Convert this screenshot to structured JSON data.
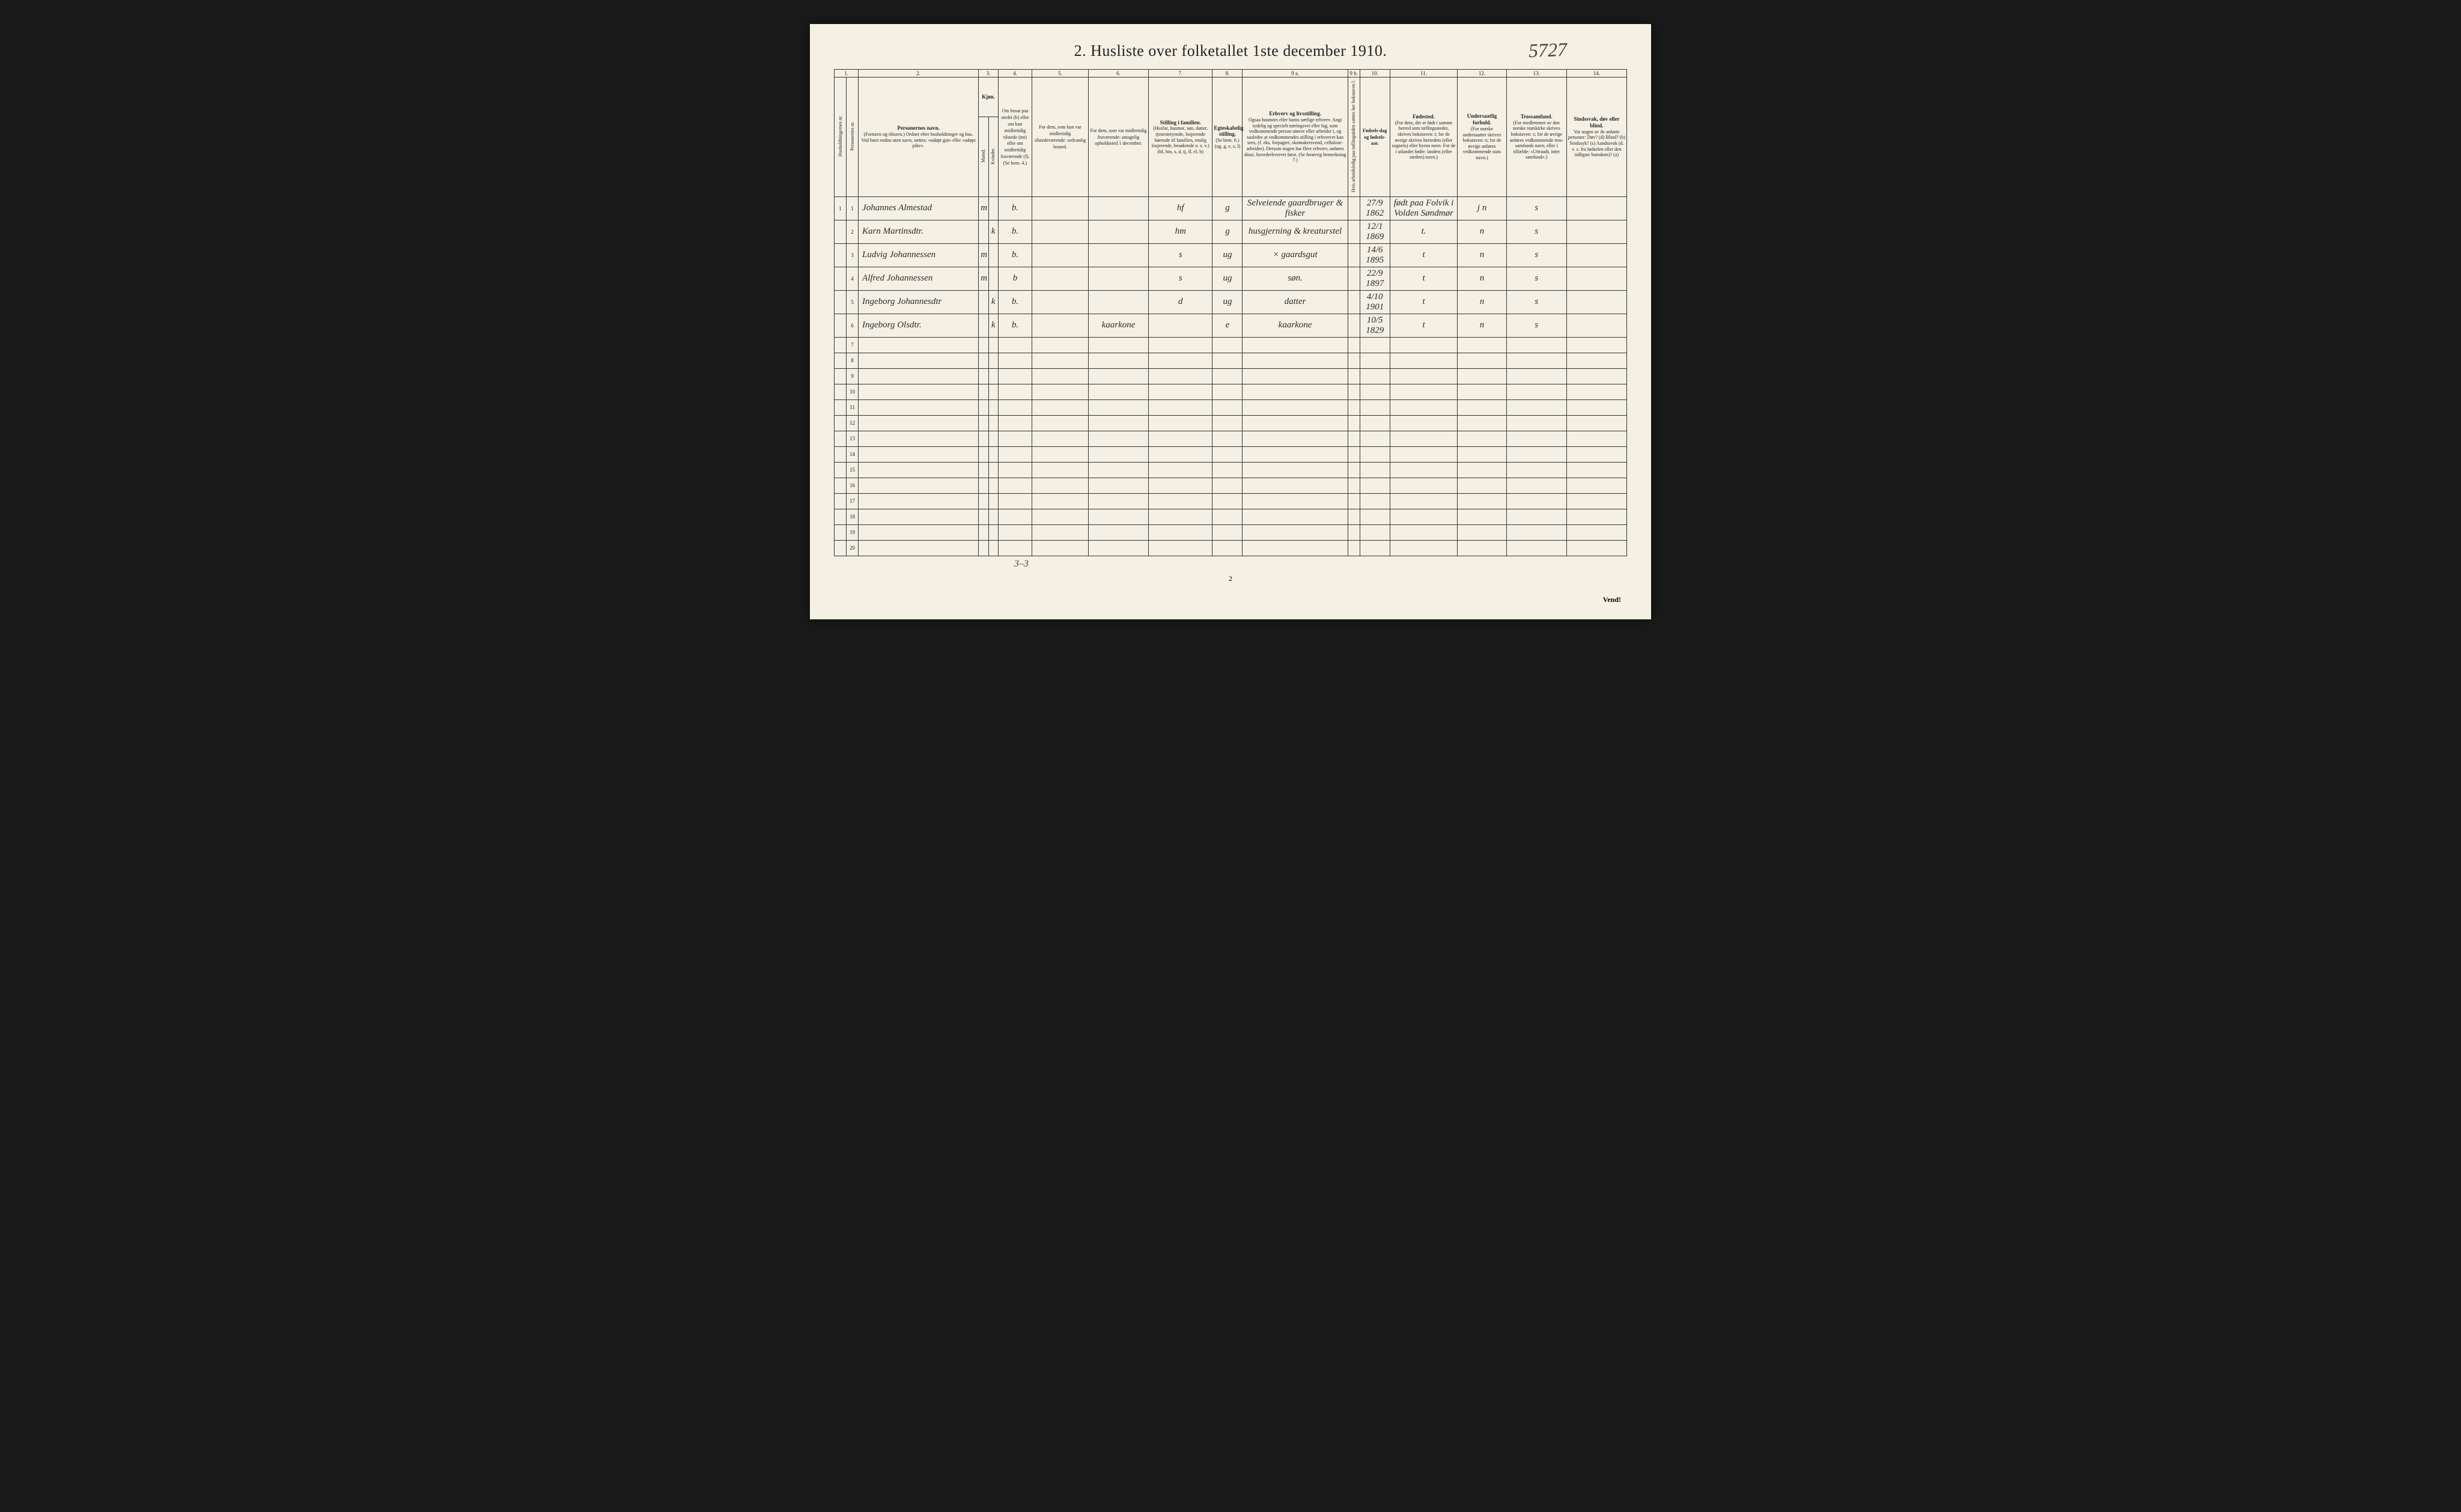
{
  "title": "2.  Husliste over folketallet 1ste december 1910.",
  "corner_number": "5727",
  "page_number_bottom": "2",
  "vend_text": "Vend!",
  "below_table_note": "3–3",
  "column_numbers": [
    "1.",
    "2.",
    "3.",
    "4.",
    "5.",
    "6.",
    "7.",
    "8.",
    "9 a.",
    "9 b.",
    "10.",
    "11.",
    "12.",
    "13.",
    "14."
  ],
  "headers": {
    "c1a": "Husholdningernes nr.",
    "c1b": "Personernes nr.",
    "c2_title": "Personernes navn.",
    "c2_sub": "(Fornavn og tilnavn.)\nOrdnet efter husholdninger og hus.\nVed barn endnu uten navn, sættes: «udøpt gut» eller «udøpt pike».",
    "c3_title": "Kjøn.",
    "c3a": "Mænd.",
    "c3b": "Kvinder.",
    "c3_sub": "m.  k.",
    "c4": "Om bosat paa stedet (b) eller om kun midlertidig tilstede (mt) eller om midlertidig fraværende (f). (Se bem. 4.)",
    "c5": "For dem, som kun var midlertidig tilstedeværende:\nsedvanlig bosted.",
    "c6": "For dem, som var midlertidig fraværende:\nantagelig opholdssted 1 december.",
    "c7_title": "Stilling i familien.",
    "c7_sub": "(Husfar, husmor, søn, datter, tjenestetyende, losjerende hørende til familien, enslig losjerende, besøkende o. s. v.)\n(hf, hm, s, d, tj, fl, el, b)",
    "c8_title": "Egteskabelig stilling.",
    "c8_sub": "(Se bem. 6.)\n(ug, g, e, s, f)",
    "c9a_title": "Erhverv og livsstilling.",
    "c9a_sub": "Ogsaa husmors eller barns særlige erhverv. Angi tydelig og specielt næringsvei eller fag, som vedkommende person utøver eller arbeider i, og saaledes at vedkommendes stilling i erhvervet kan sees, (f. eks. forpagter, skomakersvend, cellulose-arbeider). Dersom nogen har flere erhverv, anføres disse, hovederhvervet først.\n(Se forøvrig bemerkning 7.)",
    "c9b": "Hvis arbeidsledig paa tællingstiden sættes her bokstaven l.",
    "c10": "Fødsels-dag og fødsels-aar.",
    "c11_title": "Fødested.",
    "c11_sub": "(For dem, der er født i samme herred som tællingsstedet, skrives bokstaven: t; for de øvrige skrives herredets (eller sognets) eller byens navn. For de i utlandet fødte: landets (eller stedets) navn.)",
    "c12_title": "Undersaatlig forhold.",
    "c12_sub": "(For norske undersaatter skrives bokstaven: n; for de øvrige anføres vedkommende stats navn.)",
    "c13_title": "Trossamfund.",
    "c13_sub": "(For medlemmer av den norske statskirke skrives bokstaven: s; for de øvrige anføres vedkommende tros-samfunds navn, eller i tilfælde: «Uttraadt, intet samfund».)",
    "c14_title": "Sindssvak, døv eller blind.",
    "c14_sub": "Var nogen av de anførte personer:\nDøv?       (d)\nBlind?      (b)\nSindssyk?  (s)\nAandssvak (d. v. s. fra fødselen eller den tidligste barndom)?  (a)"
  },
  "widths": {
    "c1a": "1.6%",
    "c1b": "1.6%",
    "c2": "16%",
    "c3a": "1.3%",
    "c3b": "1.3%",
    "c4": "4.5%",
    "c5": "7.5%",
    "c6": "8%",
    "c7": "8.5%",
    "c8": "4%",
    "c9a": "14%",
    "c9b": "1.6%",
    "c10": "4%",
    "c11": "9%",
    "c12": "6.5%",
    "c13": "8%",
    "c14": "8%"
  },
  "rows": [
    {
      "hh": "1",
      "pn": "1",
      "name": "Johannes Almestad",
      "m": "m",
      "k": "",
      "bosat": "b.",
      "c5": "",
      "c6": "",
      "fam": "hf",
      "egte": "g",
      "erhverv": "Selveiende gaardbruger & fisker",
      "l": "",
      "dob": "27/9 1862",
      "fodested": "født paa Folvik i Volden Søndmør",
      "under": "j   n",
      "tros": "s",
      "c14": ""
    },
    {
      "hh": "",
      "pn": "2",
      "name": "Karn Martinsdtr.",
      "m": "",
      "k": "k",
      "bosat": "b.",
      "c5": "",
      "c6": "",
      "fam": "hm",
      "egte": "g",
      "erhverv": "husgjerning & kreaturstel",
      "l": "",
      "dob": "12/1 1869",
      "fodested": "t.",
      "under": "n",
      "tros": "s",
      "c14": ""
    },
    {
      "hh": "",
      "pn": "3",
      "name": "Ludvig Johannessen",
      "m": "m",
      "k": "",
      "bosat": "b.",
      "c5": "",
      "c6": "",
      "fam": "s",
      "egte": "ug",
      "erhverv": "×   gaardsgut",
      "l": "",
      "dob": "14/6 1895",
      "fodested": "t",
      "under": "n",
      "tros": "s",
      "c14": ""
    },
    {
      "hh": "",
      "pn": "4",
      "name": "Alfred Johannessen",
      "m": "m",
      "k": "",
      "bosat": "b",
      "c5": "",
      "c6": "",
      "fam": "s",
      "egte": "ug",
      "erhverv": "søn.",
      "l": "",
      "dob": "22/9 1897",
      "fodested": "t",
      "under": "n",
      "tros": "s",
      "c14": ""
    },
    {
      "hh": "",
      "pn": "5",
      "name": "Ingeborg Johannesdtr",
      "m": "",
      "k": "k",
      "bosat": "b.",
      "c5": "",
      "c6": "",
      "fam": "d",
      "egte": "ug",
      "erhverv": "datter",
      "l": "",
      "dob": "4/10 1901",
      "fodested": "t",
      "under": "n",
      "tros": "s",
      "c14": ""
    },
    {
      "hh": "",
      "pn": "6",
      "name": "Ingeborg Olsdtr.",
      "m": "",
      "k": "k",
      "bosat": "b.",
      "c5": "",
      "c6": "kaarkone",
      "fam": "",
      "egte": "e",
      "erhverv": "kaarkone",
      "l": "",
      "dob": "10/5 1829",
      "fodested": "t",
      "under": "n",
      "tros": "s",
      "c14": ""
    },
    {
      "hh": "",
      "pn": "7",
      "name": "",
      "m": "",
      "k": "",
      "bosat": "",
      "c5": "",
      "c6": "",
      "fam": "",
      "egte": "",
      "erhverv": "",
      "l": "",
      "dob": "",
      "fodested": "",
      "under": "",
      "tros": "",
      "c14": ""
    },
    {
      "hh": "",
      "pn": "8",
      "name": "",
      "m": "",
      "k": "",
      "bosat": "",
      "c5": "",
      "c6": "",
      "fam": "",
      "egte": "",
      "erhverv": "",
      "l": "",
      "dob": "",
      "fodested": "",
      "under": "",
      "tros": "",
      "c14": ""
    },
    {
      "hh": "",
      "pn": "9",
      "name": "",
      "m": "",
      "k": "",
      "bosat": "",
      "c5": "",
      "c6": "",
      "fam": "",
      "egte": "",
      "erhverv": "",
      "l": "",
      "dob": "",
      "fodested": "",
      "under": "",
      "tros": "",
      "c14": ""
    },
    {
      "hh": "",
      "pn": "10",
      "name": "",
      "m": "",
      "k": "",
      "bosat": "",
      "c5": "",
      "c6": "",
      "fam": "",
      "egte": "",
      "erhverv": "",
      "l": "",
      "dob": "",
      "fodested": "",
      "under": "",
      "tros": "",
      "c14": ""
    },
    {
      "hh": "",
      "pn": "11",
      "name": "",
      "m": "",
      "k": "",
      "bosat": "",
      "c5": "",
      "c6": "",
      "fam": "",
      "egte": "",
      "erhverv": "",
      "l": "",
      "dob": "",
      "fodested": "",
      "under": "",
      "tros": "",
      "c14": ""
    },
    {
      "hh": "",
      "pn": "12",
      "name": "",
      "m": "",
      "k": "",
      "bosat": "",
      "c5": "",
      "c6": "",
      "fam": "",
      "egte": "",
      "erhverv": "",
      "l": "",
      "dob": "",
      "fodested": "",
      "under": "",
      "tros": "",
      "c14": ""
    },
    {
      "hh": "",
      "pn": "13",
      "name": "",
      "m": "",
      "k": "",
      "bosat": "",
      "c5": "",
      "c6": "",
      "fam": "",
      "egte": "",
      "erhverv": "",
      "l": "",
      "dob": "",
      "fodested": "",
      "under": "",
      "tros": "",
      "c14": ""
    },
    {
      "hh": "",
      "pn": "14",
      "name": "",
      "m": "",
      "k": "",
      "bosat": "",
      "c5": "",
      "c6": "",
      "fam": "",
      "egte": "",
      "erhverv": "",
      "l": "",
      "dob": "",
      "fodested": "",
      "under": "",
      "tros": "",
      "c14": ""
    },
    {
      "hh": "",
      "pn": "15",
      "name": "",
      "m": "",
      "k": "",
      "bosat": "",
      "c5": "",
      "c6": "",
      "fam": "",
      "egte": "",
      "erhverv": "",
      "l": "",
      "dob": "",
      "fodested": "",
      "under": "",
      "tros": "",
      "c14": ""
    },
    {
      "hh": "",
      "pn": "16",
      "name": "",
      "m": "",
      "k": "",
      "bosat": "",
      "c5": "",
      "c6": "",
      "fam": "",
      "egte": "",
      "erhverv": "",
      "l": "",
      "dob": "",
      "fodested": "",
      "under": "",
      "tros": "",
      "c14": ""
    },
    {
      "hh": "",
      "pn": "17",
      "name": "",
      "m": "",
      "k": "",
      "bosat": "",
      "c5": "",
      "c6": "",
      "fam": "",
      "egte": "",
      "erhverv": "",
      "l": "",
      "dob": "",
      "fodested": "",
      "under": "",
      "tros": "",
      "c14": ""
    },
    {
      "hh": "",
      "pn": "18",
      "name": "",
      "m": "",
      "k": "",
      "bosat": "",
      "c5": "",
      "c6": "",
      "fam": "",
      "egte": "",
      "erhverv": "",
      "l": "",
      "dob": "",
      "fodested": "",
      "under": "",
      "tros": "",
      "c14": ""
    },
    {
      "hh": "",
      "pn": "19",
      "name": "",
      "m": "",
      "k": "",
      "bosat": "",
      "c5": "",
      "c6": "",
      "fam": "",
      "egte": "",
      "erhverv": "",
      "l": "",
      "dob": "",
      "fodested": "",
      "under": "",
      "tros": "",
      "c14": ""
    },
    {
      "hh": "",
      "pn": "20",
      "name": "",
      "m": "",
      "k": "",
      "bosat": "",
      "c5": "",
      "c6": "",
      "fam": "",
      "egte": "",
      "erhverv": "",
      "l": "",
      "dob": "",
      "fodested": "",
      "under": "",
      "tros": "",
      "c14": ""
    }
  ]
}
